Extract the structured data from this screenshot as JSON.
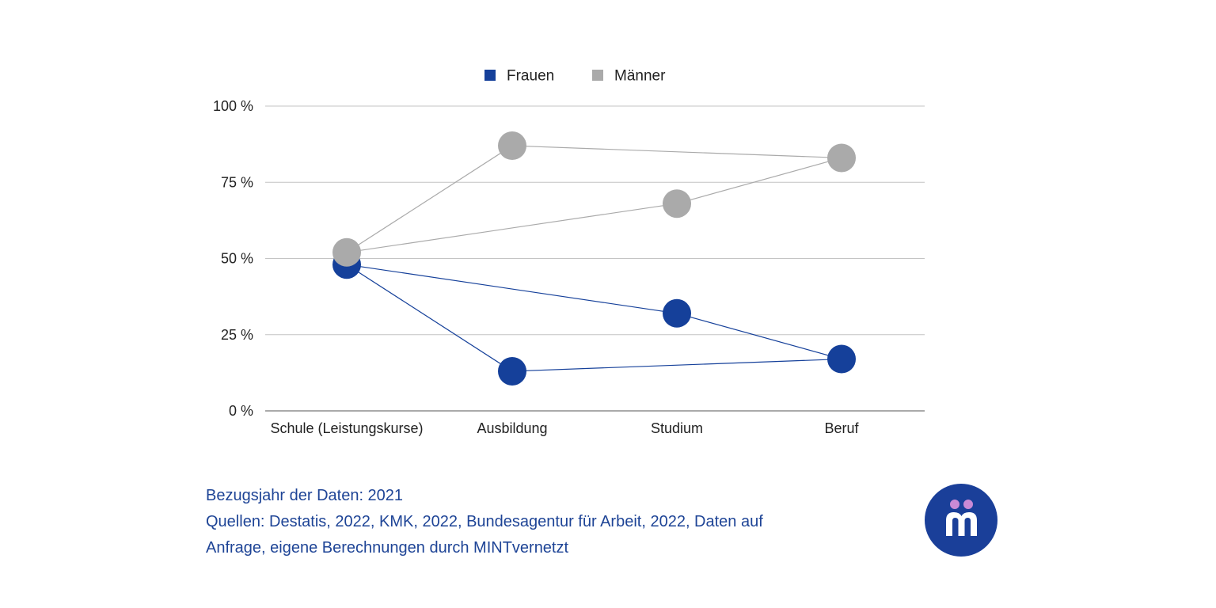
{
  "chart_data": {
    "type": "line",
    "title": "",
    "xlabel": "",
    "ylabel": "",
    "ylim": [
      0,
      100
    ],
    "yticks": [
      0,
      25,
      50,
      75,
      100
    ],
    "ytick_labels": [
      "0 %",
      "25 %",
      "50 %",
      "75 %",
      "100 %"
    ],
    "categories": [
      "Schule (Leistungskurse)",
      "Ausbildung",
      "Studium",
      "Beruf"
    ],
    "series": [
      {
        "name": "Frauen",
        "color": "#15409a",
        "points": [
          {
            "category": "Schule (Leistungskurse)",
            "value": 48
          },
          {
            "category": "Ausbildung",
            "value": 13
          },
          {
            "category": "Studium",
            "value": 32
          },
          {
            "category": "Beruf",
            "value": 17
          }
        ],
        "connections": [
          [
            0,
            1
          ],
          [
            1,
            3
          ],
          [
            0,
            2
          ],
          [
            2,
            3
          ]
        ]
      },
      {
        "name": "Männer",
        "color": "#aaaaaa",
        "points": [
          {
            "category": "Schule (Leistungskurse)",
            "value": 52
          },
          {
            "category": "Ausbildung",
            "value": 87
          },
          {
            "category": "Studium",
            "value": 68
          },
          {
            "category": "Beruf",
            "value": 83
          }
        ],
        "connections": [
          [
            0,
            1
          ],
          [
            1,
            3
          ],
          [
            0,
            2
          ],
          [
            2,
            3
          ]
        ]
      }
    ],
    "legend_position": "top-center",
    "grid": true
  },
  "footer": {
    "line1": "Bezugsjahr der Daten: 2021",
    "line2": "Quellen: Destatis, 2022, KMK, 2022, Bundesagentur für Arbeit, 2022, Daten auf",
    "line3": "Anfrage, eigene Berechnungen durch MINTvernetzt",
    "color": "#1e4496"
  },
  "logo": {
    "icon": "mintvernetzt-m-icon",
    "background": "#1a3f99",
    "dot_color": "#c98ad6"
  }
}
